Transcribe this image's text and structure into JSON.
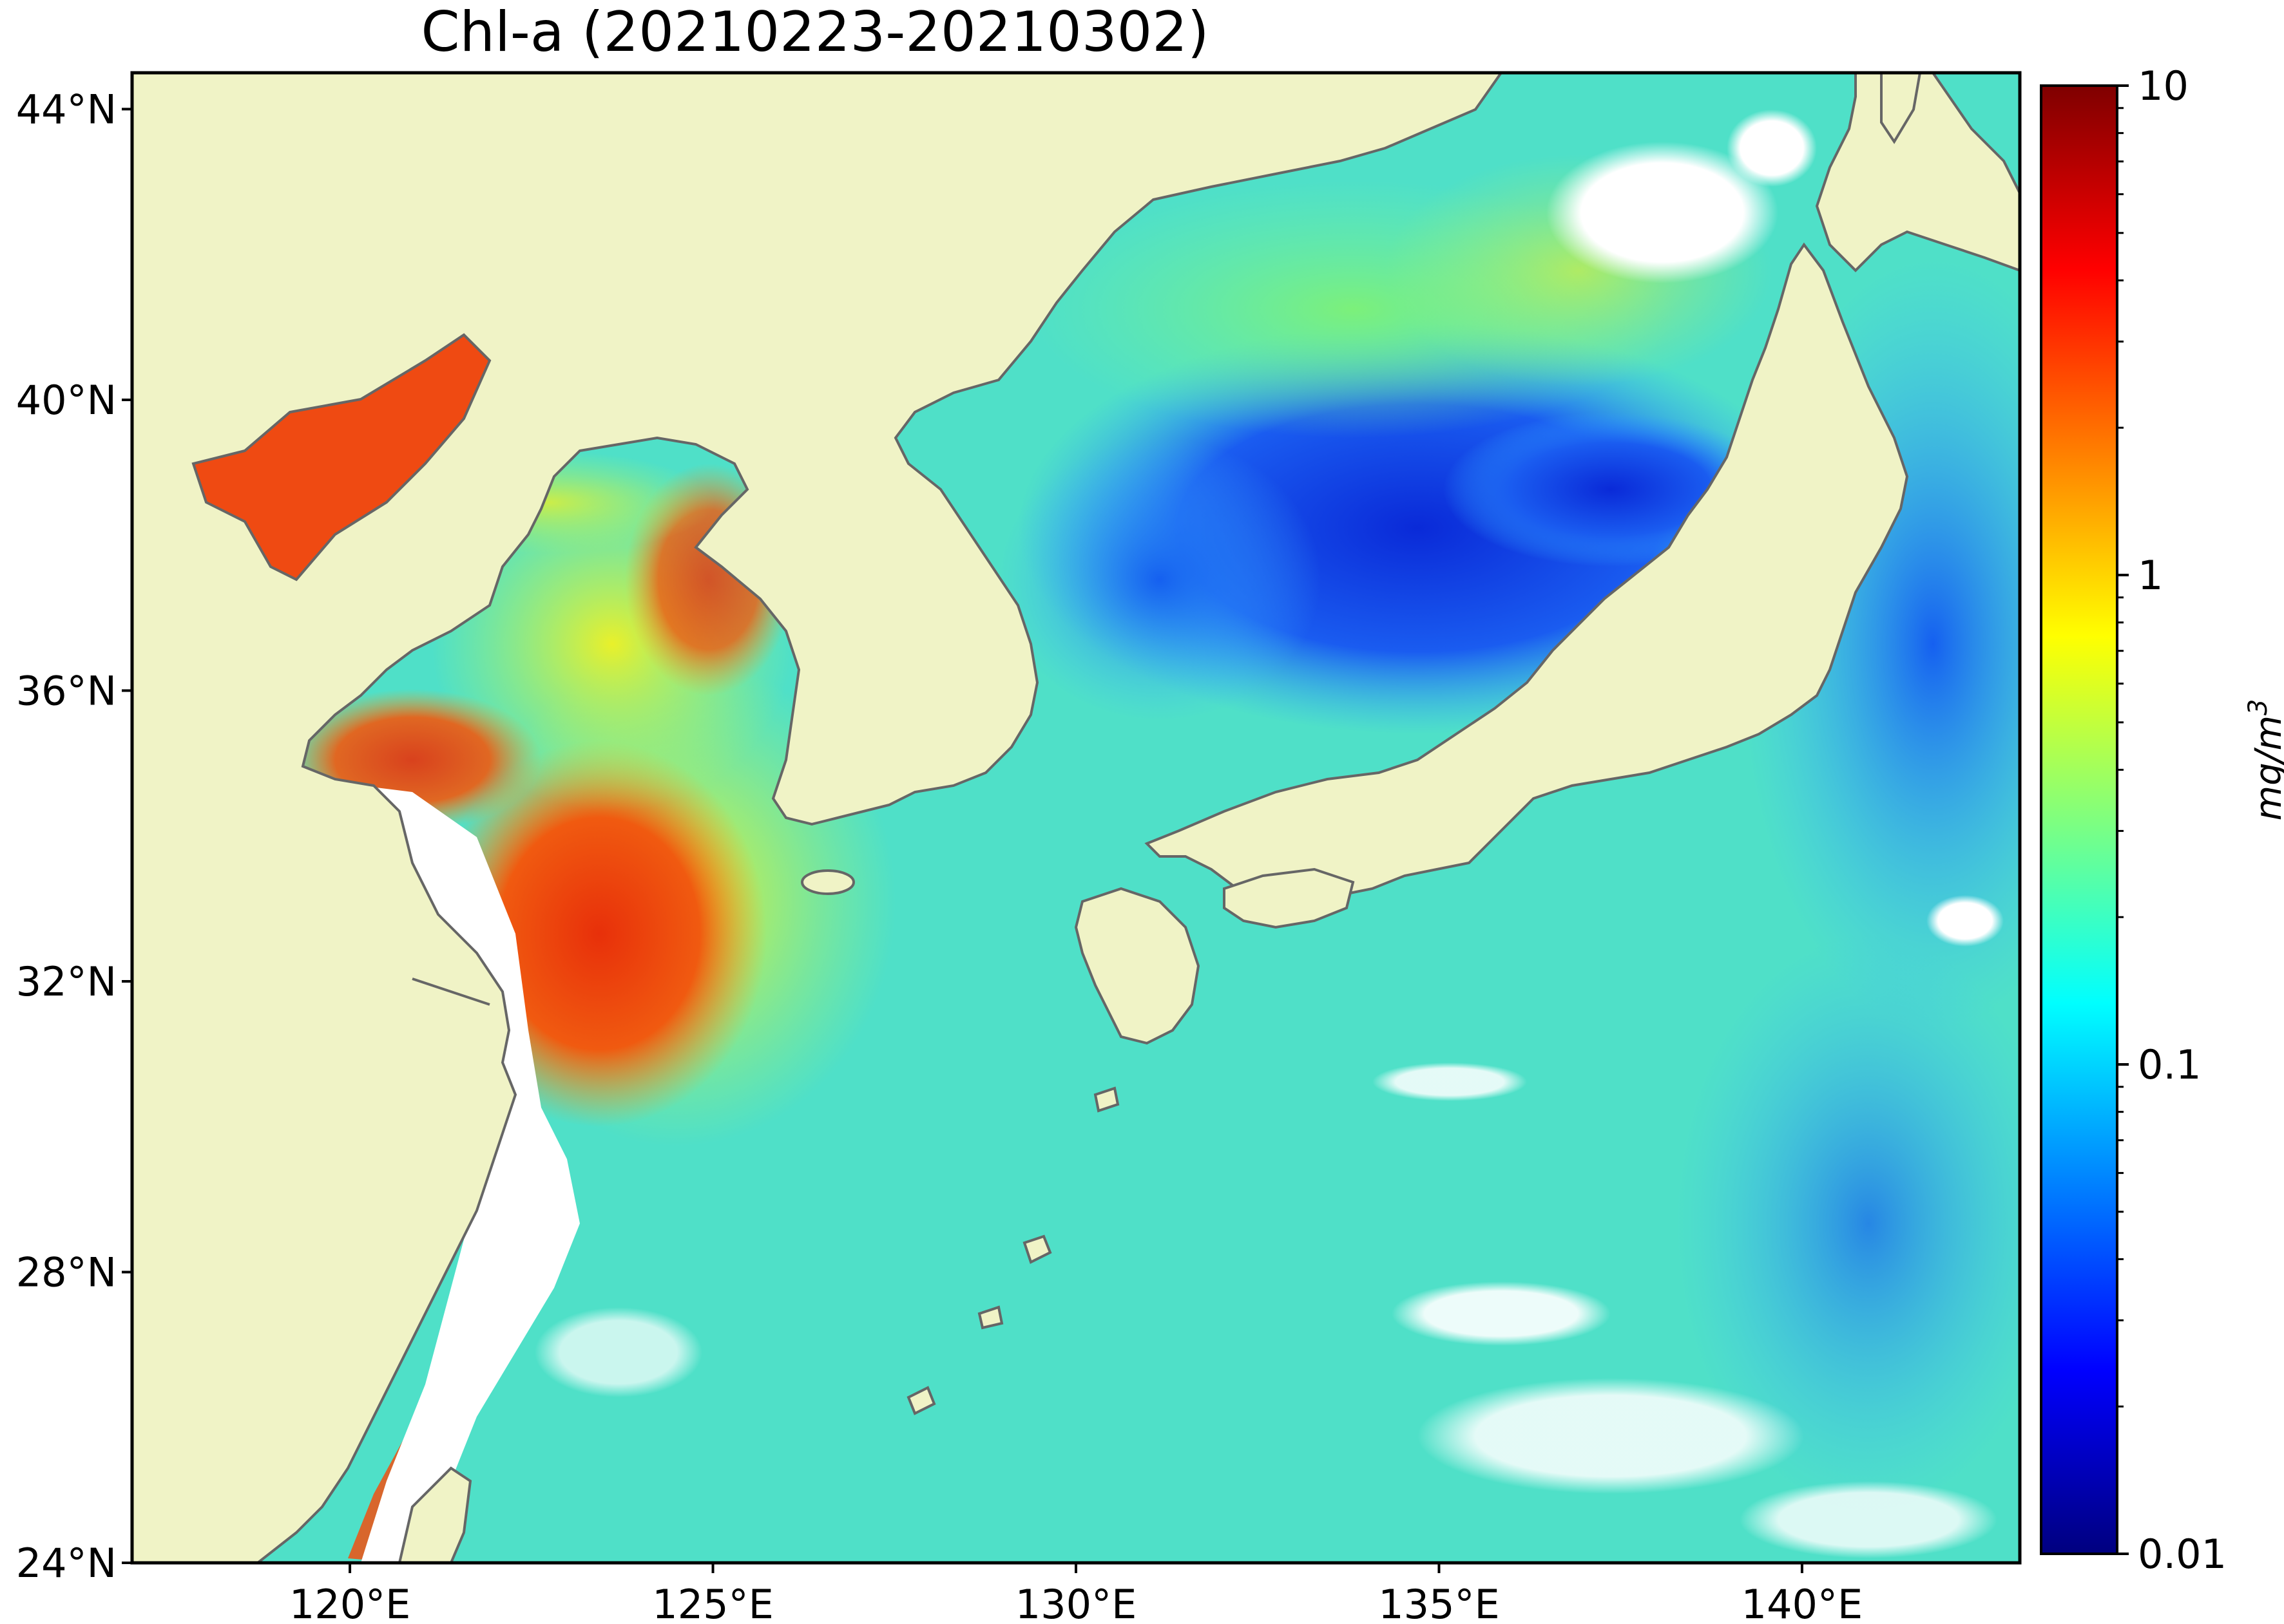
{
  "title": "Chl-a (20210223-20210302)",
  "map": {
    "lon_range": [
      117,
      143
    ],
    "lat_range": [
      24,
      44.5
    ],
    "lat_ticks": [
      {
        "value": 44,
        "label": "44°N"
      },
      {
        "value": 40,
        "label": "40°N"
      },
      {
        "value": 36,
        "label": "36°N"
      },
      {
        "value": 32,
        "label": "32°N"
      },
      {
        "value": 28,
        "label": "28°N"
      },
      {
        "value": 24,
        "label": "24°N"
      }
    ],
    "lon_ticks": [
      {
        "value": 120,
        "label": "120°E"
      },
      {
        "value": 125,
        "label": "125°E"
      },
      {
        "value": 130,
        "label": "130°E"
      },
      {
        "value": 135,
        "label": "135°E"
      },
      {
        "value": 140,
        "label": "140°E"
      }
    ],
    "colors": {
      "land": "#f0f3c6",
      "no_data": "#ffffff",
      "coastline": "#666666"
    }
  },
  "colorbar": {
    "scale": "log",
    "range": [
      0.01,
      10
    ],
    "ticks": [
      {
        "value": 10,
        "label": "10"
      },
      {
        "value": 1,
        "label": "1"
      },
      {
        "value": 0.1,
        "label": "0.1"
      },
      {
        "value": 0.01,
        "label": "0.01"
      }
    ],
    "unit_base": "mg/m",
    "unit_exp": "3",
    "colormap": [
      "#00007f",
      "#0000ff",
      "#007fff",
      "#00ffff",
      "#7fff7f",
      "#ffff00",
      "#ff7f00",
      "#ff0000",
      "#7f0000"
    ]
  }
}
